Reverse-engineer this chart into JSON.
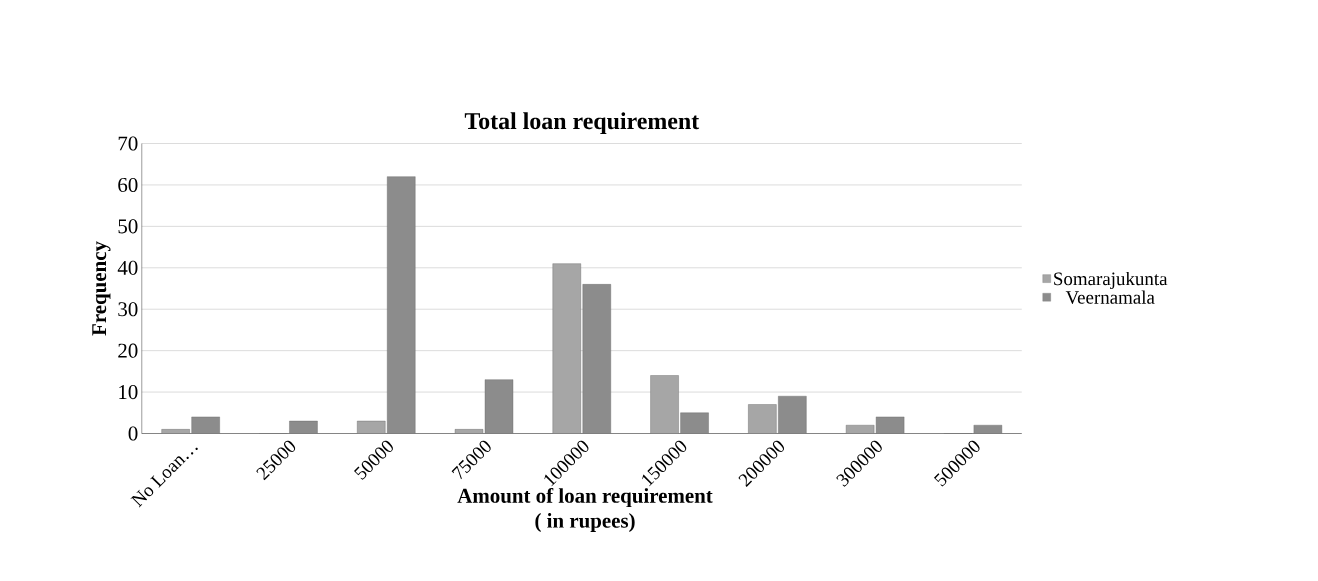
{
  "chart_data": {
    "type": "bar",
    "title": "Total loan requirement",
    "xlabel": "Amount of loan requirement\n( in rupees)",
    "ylabel": "Frequency",
    "categories": [
      "No Loan…",
      "25000",
      "50000",
      "75000",
      "100000",
      "150000",
      "200000",
      "300000",
      "500000"
    ],
    "series": [
      {
        "name": "Somarajukunta",
        "color": "#a6a6a6",
        "values": [
          1,
          0,
          3,
          1,
          41,
          14,
          7,
          2,
          0
        ]
      },
      {
        "name": "Veernamala",
        "color": "#8c8c8c",
        "values": [
          4,
          3,
          62,
          13,
          36,
          5,
          9,
          4,
          2
        ]
      }
    ],
    "ylim": [
      0,
      70
    ],
    "yticks": [
      0,
      10,
      20,
      30,
      40,
      50,
      60,
      70
    ],
    "grid": "y",
    "legend": "right"
  }
}
